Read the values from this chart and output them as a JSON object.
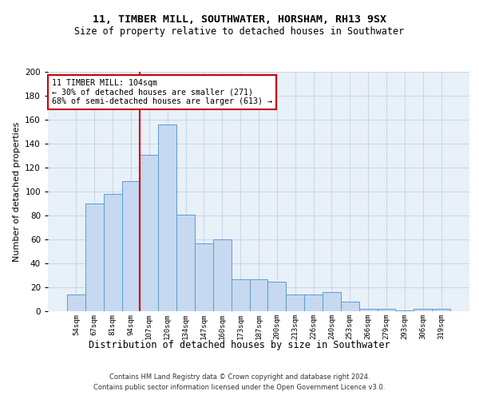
{
  "title_line1": "11, TIMBER MILL, SOUTHWATER, HORSHAM, RH13 9SX",
  "title_line2": "Size of property relative to detached houses in Southwater",
  "xlabel": "Distribution of detached houses by size in Southwater",
  "ylabel": "Number of detached properties",
  "bar_labels": [
    "54sqm",
    "67sqm",
    "81sqm",
    "94sqm",
    "107sqm",
    "120sqm",
    "134sqm",
    "147sqm",
    "160sqm",
    "173sqm",
    "187sqm",
    "200sqm",
    "213sqm",
    "226sqm",
    "240sqm",
    "253sqm",
    "266sqm",
    "279sqm",
    "293sqm",
    "306sqm",
    "319sqm"
  ],
  "bar_heights": [
    14,
    90,
    98,
    109,
    131,
    156,
    81,
    57,
    60,
    27,
    27,
    25,
    14,
    14,
    16,
    8,
    2,
    2,
    1,
    2,
    2
  ],
  "bar_color": "#c6d9f0",
  "bar_edge_color": "#5b9bd5",
  "vline_color": "#cc0000",
  "annotation_text": "11 TIMBER MILL: 104sqm\n← 30% of detached houses are smaller (271)\n68% of semi-detached houses are larger (613) →",
  "annotation_box_color": "#ffffff",
  "annotation_box_edge": "#cc0000",
  "ylim": [
    0,
    200
  ],
  "yticks": [
    0,
    20,
    40,
    60,
    80,
    100,
    120,
    140,
    160,
    180,
    200
  ],
  "grid_color": "#c8d8ea",
  "background_color": "#e8f0f8",
  "footer_line1": "Contains HM Land Registry data © Crown copyright and database right 2024.",
  "footer_line2": "Contains public sector information licensed under the Open Government Licence v3.0."
}
